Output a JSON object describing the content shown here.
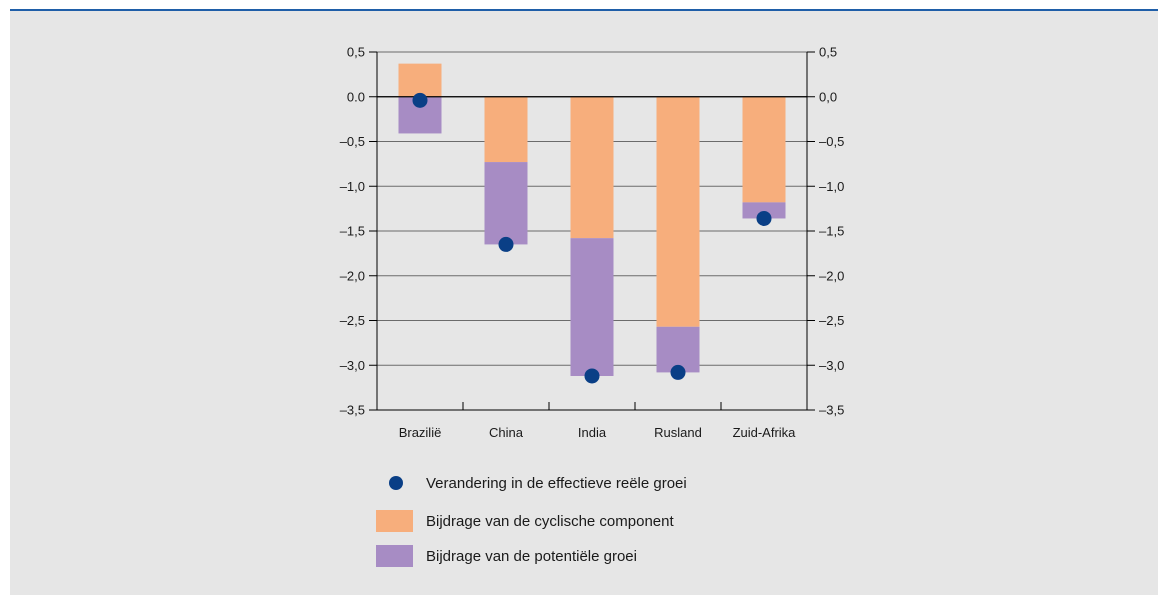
{
  "colors": {
    "accent_rule": "#1f5ea8",
    "cyclical": "#f7ae7c",
    "potential": "#a78cc4",
    "dot": "#0a3f86"
  },
  "chart_data": {
    "type": "bar",
    "categories": [
      "Brazilië",
      "China",
      "India",
      "Rusland",
      "Zuid-Afrika"
    ],
    "series": [
      {
        "name": "Bijdrage van de cyclische component",
        "values": [
          0.37,
          -0.73,
          -1.58,
          -2.57,
          -1.18
        ]
      },
      {
        "name": "Bijdrage van de potentiële groei",
        "values": [
          -0.41,
          -0.92,
          -1.54,
          -0.51,
          -0.18
        ]
      },
      {
        "name": "Verandering in de effectieve reële groei",
        "values": [
          -0.04,
          -1.65,
          -3.12,
          -3.08,
          -1.36
        ]
      }
    ],
    "ylim": [
      -3.5,
      0.5
    ],
    "y_ticks": [
      "0,5",
      "0.0",
      "–0,5",
      "–1,0",
      "–1,5",
      "–2,0",
      "–2,5",
      "–3,0",
      "–3,5"
    ],
    "y_ticks_right": [
      "0,5",
      "0,0",
      "–0,5",
      "–1,0",
      "–1,5",
      "–2,0",
      "–2,5",
      "–3,0",
      "–3,5"
    ],
    "grid": true,
    "legend_position": "bottom",
    "xlabel": "",
    "ylabel": ""
  },
  "legend": [
    {
      "label": "Verandering in de effectieve reële groei",
      "swatch": "dot"
    },
    {
      "label": "Bijdrage van de cyclische component",
      "swatch": "box-cyclical"
    },
    {
      "label": "Bijdrage van de potentiële groei",
      "swatch": "box-potential"
    }
  ]
}
